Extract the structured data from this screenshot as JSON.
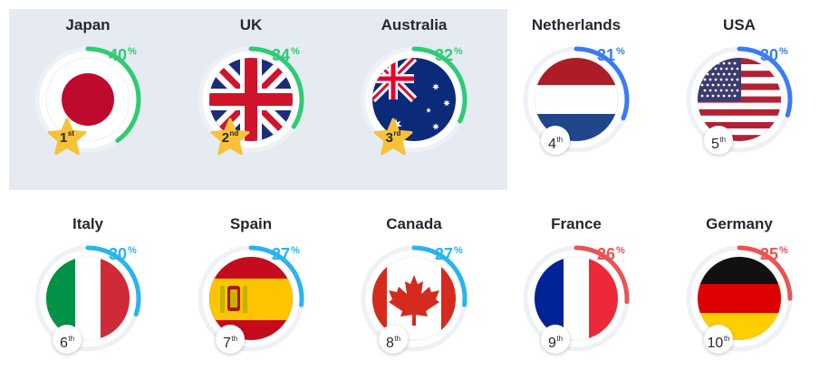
{
  "countries": [
    {
      "name": "Japan",
      "pct": "40",
      "pct_sign": "%",
      "rank": "1",
      "rank_suffix": "st",
      "value": 40,
      "color": "#2ecb74",
      "flag": "japan-flag-icon",
      "medal": true
    },
    {
      "name": "UK",
      "pct": "34",
      "pct_sign": "%",
      "rank": "2",
      "rank_suffix": "nd",
      "value": 34,
      "color": "#2ecb74",
      "flag": "uk-flag-icon",
      "medal": true
    },
    {
      "name": "Australia",
      "pct": "32",
      "pct_sign": "%",
      "rank": "3",
      "rank_suffix": "rd",
      "value": 32,
      "color": "#2ecb74",
      "flag": "australia-flag-icon",
      "medal": true
    },
    {
      "name": "Netherlands",
      "pct": "31",
      "pct_sign": "%",
      "rank": "4",
      "rank_suffix": "th",
      "value": 31,
      "color": "#3d7bf5",
      "flag": "netherlands-flag-icon",
      "medal": false
    },
    {
      "name": "USA",
      "pct": "30",
      "pct_sign": "%",
      "rank": "5",
      "rank_suffix": "th",
      "value": 30,
      "color": "#3d7bf5",
      "flag": "usa-flag-icon",
      "medal": false
    },
    {
      "name": "Italy",
      "pct": "30",
      "pct_sign": "%",
      "rank": "6",
      "rank_suffix": "th",
      "value": 30,
      "color": "#29b4ee",
      "flag": "italy-flag-icon",
      "medal": false
    },
    {
      "name": "Spain",
      "pct": "27",
      "pct_sign": "%",
      "rank": "7",
      "rank_suffix": "th",
      "value": 27,
      "color": "#29b4ee",
      "flag": "spain-flag-icon",
      "medal": false
    },
    {
      "name": "Canada",
      "pct": "27",
      "pct_sign": "%",
      "rank": "8",
      "rank_suffix": "th",
      "value": 27,
      "color": "#29b4ee",
      "flag": "canada-flag-icon",
      "medal": false
    },
    {
      "name": "France",
      "pct": "26",
      "pct_sign": "%",
      "rank": "9",
      "rank_suffix": "th",
      "value": 26,
      "color": "#e85454",
      "flag": "france-flag-icon",
      "medal": false
    },
    {
      "name": "Germany",
      "pct": "25",
      "pct_sign": "%",
      "rank": "10",
      "rank_suffix": "th",
      "value": 25,
      "color": "#e85454",
      "flag": "germany-flag-icon",
      "medal": false
    }
  ]
}
